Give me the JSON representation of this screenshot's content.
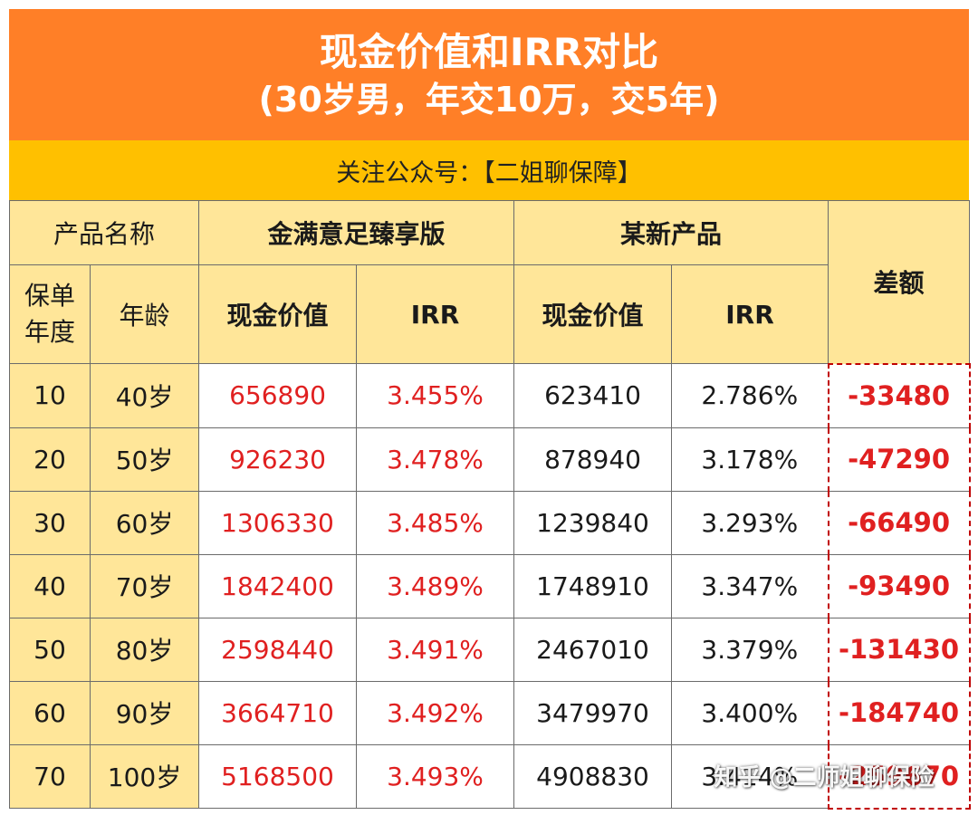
{
  "title": {
    "line1": "现金价值和IRR对比",
    "line2": "(30岁男，年交10万，交5年)"
  },
  "follow": "关注公众号：【二姐聊保障】",
  "headers": {
    "product_name": "产品名称",
    "product_a": "金满意足臻享版",
    "product_b": "某新产品",
    "diff": "差额",
    "policy_year": "保单年度",
    "age": "年龄",
    "cash_value": "现金价值",
    "irr": "IRR"
  },
  "rows": [
    {
      "year": "10",
      "age": "40岁",
      "a_cv": "656890",
      "a_irr": "3.455%",
      "b_cv": "623410",
      "b_irr": "2.786%",
      "diff": "-33480"
    },
    {
      "year": "20",
      "age": "50岁",
      "a_cv": "926230",
      "a_irr": "3.478%",
      "b_cv": "878940",
      "b_irr": "3.178%",
      "diff": "-47290"
    },
    {
      "year": "30",
      "age": "60岁",
      "a_cv": "1306330",
      "a_irr": "3.485%",
      "b_cv": "1239840",
      "b_irr": "3.293%",
      "diff": "-66490"
    },
    {
      "year": "40",
      "age": "70岁",
      "a_cv": "1842400",
      "a_irr": "3.489%",
      "b_cv": "1748910",
      "b_irr": "3.347%",
      "diff": "-93490"
    },
    {
      "year": "50",
      "age": "80岁",
      "a_cv": "2598440",
      "a_irr": "3.491%",
      "b_cv": "2467010",
      "b_irr": "3.379%",
      "diff": "-131430"
    },
    {
      "year": "60",
      "age": "90岁",
      "a_cv": "3664710",
      "a_irr": "3.492%",
      "b_cv": "3479970",
      "b_irr": "3.400%",
      "diff": "-184740"
    },
    {
      "year": "70",
      "age": "100岁",
      "a_cv": "5168500",
      "a_irr": "3.493%",
      "b_cv": "4908830",
      "b_irr": "3.414%",
      "diff": "-259670"
    }
  ],
  "watermark": "知乎 @二师姐聊保险"
}
